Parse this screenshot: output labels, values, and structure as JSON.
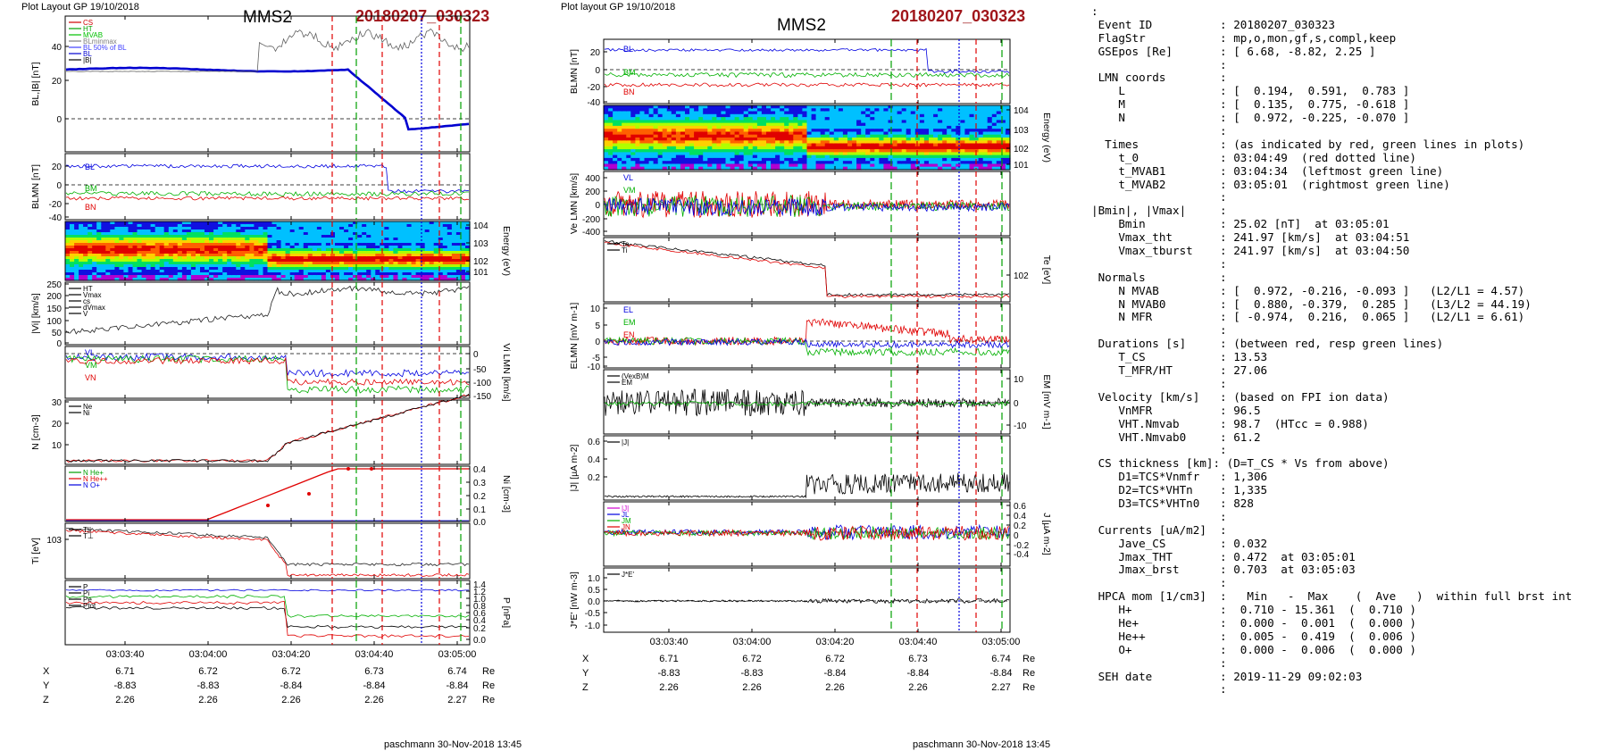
{
  "left": {
    "header": "Plot Layout GP 19/10/2018",
    "mms": "MMS2",
    "event": "20180207_030323",
    "footer": "paschmann 30-Nov-2018 13:45",
    "time_ticks": [
      "03:03:40",
      "03:04:00",
      "03:04:20",
      "03:04:40",
      "03:05:00"
    ],
    "panels": [
      {
        "ylabel": "B_L,|B| [nT]",
        "ticks": [
          "40",
          "20",
          "0"
        ],
        "legend": [
          "CS",
          "HT",
          "MVAB",
          "BLminmax",
          "BL 50% of BL",
          "BL",
          "|B|"
        ],
        "legend_colors": [
          "#d00000",
          "#00a000",
          "#00c000",
          "#808080",
          "#4040ff",
          "#0000d0",
          "#000000"
        ]
      },
      {
        "ylabel": "B_LMN [nT]",
        "ticks": [
          "20",
          "0",
          "-20",
          "-40"
        ],
        "series": [
          "B_L",
          "B_M",
          "B_N"
        ]
      },
      {
        "ylabel": "Energy (eV)",
        "ticks": [
          "10^4",
          "10^3",
          "10^2",
          "10^1"
        ]
      },
      {
        "ylabel": "|V_i| [km/s]",
        "ticks": [
          "250",
          "200",
          "150",
          "100",
          "50",
          "0"
        ],
        "legend": [
          "HT",
          "Vmax",
          "cs",
          "dVmax",
          "V"
        ]
      },
      {
        "ylabel": "V_i LMN [km/s]",
        "ticks": [
          "0",
          "-50",
          "-100",
          "-150"
        ],
        "series": [
          "V_L",
          "V_M",
          "V_N"
        ]
      },
      {
        "ylabel": "N [cm^-3]",
        "ticks": [
          "30",
          "20",
          "10"
        ],
        "legend": [
          "Ne",
          "Ni"
        ]
      },
      {
        "ylabel": "N_i [cm^-3]",
        "ticks": [
          "0.4",
          "0.3",
          "0.2",
          "0.1",
          "0.0"
        ],
        "legend": [
          "N He+",
          "N He++",
          "N O+"
        ]
      },
      {
        "ylabel": "T_i [eV]",
        "ticks": [
          "10^3"
        ],
        "legend": [
          "T_||",
          "T_⊥"
        ]
      },
      {
        "ylabel": "P [nPa]",
        "ticks": [
          "1.4",
          "1.2",
          "1.0",
          "0.8",
          "0.6",
          "0.4",
          "0.2",
          "0.0"
        ],
        "legend": [
          "P",
          "P_i",
          "P_e",
          "P_tot"
        ]
      }
    ],
    "coords": {
      "labels": [
        "X",
        "Y",
        "Z"
      ],
      "unit": "Re",
      "X": [
        "6.71",
        "6.72",
        "6.72",
        "6.73",
        "6.74"
      ],
      "Y": [
        "-8.83",
        "-8.83",
        "-8.84",
        "-8.84",
        "-8.84"
      ],
      "Z": [
        "2.26",
        "2.26",
        "2.26",
        "2.26",
        "2.27"
      ]
    }
  },
  "middle": {
    "header": "Plot layout GP 19/10/2018",
    "mms": "MMS2",
    "event": "20180207_030323",
    "footer": "paschmann 30-Nov-2018 13:45",
    "time_ticks": [
      "03:03:40",
      "03:04:00",
      "03:04:20",
      "03:04:40",
      "03:05:00"
    ],
    "panels": [
      {
        "ylabel": "B_LMN [nT]",
        "ticks": [
          "20",
          "0",
          "-20",
          "-40"
        ],
        "series": [
          "B_L",
          "B_M",
          "B_N"
        ]
      },
      {
        "ylabel": "Energy (eV)",
        "ticks": [
          "10^4",
          "10^3",
          "10^2",
          "10^1"
        ]
      },
      {
        "ylabel": "V_e LMN [km/s]",
        "ticks": [
          "400",
          "200",
          "0",
          "-200",
          "-400"
        ],
        "series": [
          "V_L",
          "V_M",
          "V_N"
        ]
      },
      {
        "ylabel": "T_e [eV]",
        "ticks": [
          "10^2"
        ],
        "legend": [
          "T_e",
          "T_i"
        ]
      },
      {
        "ylabel": "E_LMN [mV m^-1]",
        "ticks": [
          "10",
          "5",
          "0",
          "-5",
          "-10"
        ],
        "series": [
          "E_L",
          "E_M",
          "E_N"
        ]
      },
      {
        "ylabel": "E_M [mV m^-1]",
        "ticks": [
          "10",
          "0",
          "-10"
        ],
        "legend": [
          "(VexB)_M",
          "E_M"
        ]
      },
      {
        "ylabel": "|J| [µA m^-2]",
        "ticks": [
          "0.6",
          "0.4",
          "0.2"
        ],
        "legend": [
          "|J|"
        ]
      },
      {
        "ylabel": "J [µA m^-2]",
        "ticks": [
          "0.6",
          "0.4",
          "0.2",
          "0",
          "-0.2",
          "-0.4"
        ],
        "legend": [
          "|J|",
          "J_L",
          "J_M",
          "J_N"
        ]
      },
      {
        "ylabel": "J*E' [nW m^-3]",
        "ticks": [
          "1.0",
          "0.5",
          "0.0",
          "-0.5",
          "-1.0"
        ],
        "legend": [
          "J*E'"
        ]
      }
    ],
    "coords": {
      "labels": [
        "X",
        "Y",
        "Z"
      ],
      "unit": "Re",
      "X": [
        "6.71",
        "6.72",
        "6.72",
        "6.73",
        "6.74"
      ],
      "Y": [
        "-8.83",
        "-8.83",
        "-8.84",
        "-8.84",
        "-8.84"
      ],
      "Z": [
        "2.26",
        "2.26",
        "2.26",
        "2.26",
        "2.27"
      ]
    }
  },
  "summary_lines": [
    ":",
    " Event ID          : 20180207_030323",
    " FlagStr           : mp,o,mon,gf,s,compl,keep",
    " GSEpos [Re]       : [ 6.68, -8.82, 2.25 ]",
    "                   :",
    " LMN coords        :",
    "    L              : [  0.194,  0.591,  0.783 ]",
    "    M              : [  0.135,  0.775, -0.618 ]",
    "    N              : [  0.972, -0.225, -0.070 ]",
    "                   :",
    "  Times            : (as indicated by red, green lines in plots)",
    "    t_0            : 03:04:49  (red dotted line)",
    "    t_MVAB1        : 03:04:34  (leftmost green line)",
    "    t_MVAB2        : 03:05:01  (rightmost green line)",
    "                   :",
    "|Bmin|, |Vmax|     :",
    "    Bmin           : 25.02 [nT]  at 03:05:01",
    "    Vmax_tht       : 241.97 [km/s]  at 03:04:51",
    "    Vmax_tburst    : 241.97 [km/s]  at 03:04:50",
    "                   :",
    " Normals           :",
    "    N MVAB         : [  0.972, -0.216, -0.093 ]   (L2/L1 = 4.57)",
    "    N MVAB0        : [  0.880, -0.379,  0.285 ]   (L3/L2 = 44.19)",
    "    N MFR          : [ -0.974,  0.216,  0.065 ]   (L2/L1 = 6.61)",
    "                   :",
    " Durations [s]     : (between red, resp green lines)",
    "    T_CS           : 13.53",
    "    T_MFR/HT       : 27.06",
    "                   :",
    " Velocity [km/s]   : (based on FPI ion data)",
    "    VnMFR          : 96.5",
    "    VHT.Nmvab      : 98.7  (HTcc = 0.988)",
    "    VHT.Nmvab0     : 61.2",
    "                   :",
    " CS thickness [km]: (D=T_CS * Vs from above)",
    "    D1=TCS*Vnmfr   : 1,306",
    "    D2=TCS*VHTn    : 1,335",
    "    D3=TCS*VHTn0   : 828",
    "                   :",
    " Currents [uA/m2]  :",
    "    Jave_CS        : 0.032",
    "    Jmax_THT       : 0.472  at 03:05:01",
    "    Jmax_brst      : 0.703  at 03:05:03",
    "                   :",
    " HPCA mom [1/cm3]  :   Min   -  Max    (  Ave   )  within full brst int",
    "    H+             :  0.710 - 15.361  (  0.710 )",
    "    He+            :  0.000 -  0.001  (  0.000 )",
    "    He++           :  0.005 -  0.419  (  0.006 )",
    "    O+             :  0.000 -  0.006  (  0.000 )",
    "                   :",
    " SEH date          : 2019-11-29 09:02:03",
    "                   :"
  ],
  "chart_data": [
    {
      "type": "line",
      "title": "MMS2",
      "xlabel": "",
      "x_ticks": [
        "03:03:40",
        "03:04:00",
        "03:04:20",
        "03:04:40",
        "03:05:00"
      ],
      "panels": [
        "B_L,|B| [nT]",
        "B_LMN [nT]",
        "Energy (eV)",
        "|V_i| [km/s]",
        "V_i LMN [km/s]",
        "N [cm^-3]",
        "N_i [cm^-3]",
        "T_i [eV]",
        "P [nPa]"
      ],
      "series": [
        {
          "name": "BL",
          "values": [
            28,
            28,
            29,
            29,
            28,
            27,
            20,
            5,
            -8,
            -10,
            -5
          ]
        },
        {
          "name": "N He++",
          "values": [
            0,
            0,
            0,
            0,
            0,
            0.05,
            0.1,
            0.2,
            0.4,
            0.4
          ]
        }
      ]
    },
    {
      "type": "line",
      "title": "MMS2",
      "xlabel": "",
      "x_ticks": [
        "03:03:40",
        "03:04:00",
        "03:04:20",
        "03:04:40",
        "03:05:00"
      ],
      "panels": [
        "B_LMN [nT]",
        "Energy (eV)",
        "V_e LMN [km/s]",
        "T_e [eV]",
        "E_LMN [mV m^-1]",
        "E_M [mV m^-1]",
        "|J| [µA m^-2]",
        "J [µA m^-2]",
        "J*E' [nW m^-3]"
      ]
    }
  ]
}
